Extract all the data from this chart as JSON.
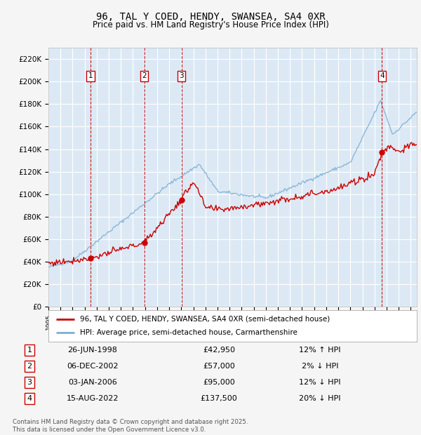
{
  "title": "96, TAL Y COED, HENDY, SWANSEA, SA4 0XR",
  "subtitle": "Price paid vs. HM Land Registry's House Price Index (HPI)",
  "background_color": "#f5f5f5",
  "plot_bg_color": "#dce9f5",
  "grid_color": "#ffffff",
  "line_color_red": "#cc0000",
  "line_color_blue": "#7bafd4",
  "ylim": [
    0,
    230000
  ],
  "yticks": [
    0,
    20000,
    40000,
    60000,
    80000,
    100000,
    120000,
    140000,
    160000,
    180000,
    200000,
    220000
  ],
  "ytick_labels": [
    "£0",
    "£20K",
    "£40K",
    "£60K",
    "£80K",
    "£100K",
    "£120K",
    "£140K",
    "£160K",
    "£180K",
    "£200K",
    "£220K"
  ],
  "xlim_start": 1995.0,
  "xlim_end": 2025.5,
  "transactions": [
    {
      "num": 1,
      "date_str": "26-JUN-1998",
      "year": 1998.48,
      "price": 42950,
      "pct": "12%",
      "dir": "↑"
    },
    {
      "num": 2,
      "date_str": "06-DEC-2002",
      "year": 2002.93,
      "price": 57000,
      "pct": "2%",
      "dir": "↓"
    },
    {
      "num": 3,
      "date_str": "03-JAN-2006",
      "year": 2006.01,
      "price": 95000,
      "pct": "12%",
      "dir": "↓"
    },
    {
      "num": 4,
      "date_str": "15-AUG-2022",
      "year": 2022.62,
      "price": 137500,
      "pct": "20%",
      "dir": "↓"
    }
  ],
  "legend_red": "96, TAL Y COED, HENDY, SWANSEA, SA4 0XR (semi-detached house)",
  "legend_blue": "HPI: Average price, semi-detached house, Carmarthenshire",
  "footer": "Contains HM Land Registry data © Crown copyright and database right 2025.\nThis data is licensed under the Open Government Licence v3.0.",
  "table_rows": [
    {
      "num": 1,
      "date": "26-JUN-1998",
      "price": "£42,950",
      "hpi": "12% ↑ HPI"
    },
    {
      "num": 2,
      "date": "06-DEC-2002",
      "price": "£57,000",
      "hpi": "2% ↓ HPI"
    },
    {
      "num": 3,
      "date": "03-JAN-2006",
      "price": "£95,000",
      "hpi": "12% ↓ HPI"
    },
    {
      "num": 4,
      "date": "15-AUG-2022",
      "price": "£137,500",
      "hpi": "20% ↓ HPI"
    }
  ]
}
